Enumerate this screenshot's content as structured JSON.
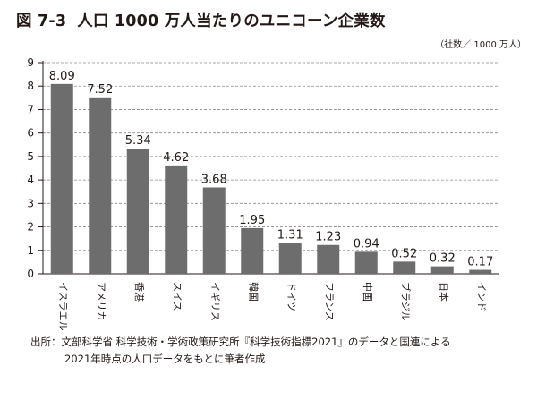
{
  "title": {
    "figure_no": "図 7-3",
    "text": "人口 1000 万人当たりのユニコーン企業数"
  },
  "source": {
    "line1": "出所：文部科学省 科学技術・学術政策研究所『科学技術指標2021』のデータと国連による",
    "line2": "2021年時点の人口データをもとに筆者作成"
  },
  "chart_data": {
    "type": "bar",
    "unit_label": "（社数／ 1000 万人）",
    "categories": [
      "イスラエル",
      "アメリカ",
      "香港",
      "スイス",
      "イギリス",
      "韓国",
      "ドイツ",
      "フランス",
      "中国",
      "ブラジル",
      "日本",
      "インド"
    ],
    "values": [
      8.09,
      7.52,
      5.34,
      4.62,
      3.68,
      1.95,
      1.31,
      1.23,
      0.94,
      0.52,
      0.32,
      0.17
    ],
    "value_labels": [
      "8.09",
      "7.52",
      "5.34",
      "4.62",
      "3.68",
      "1.95",
      "1.31",
      "1.23",
      "0.94",
      "0.52",
      "0.32",
      "0.17"
    ],
    "ylim": [
      0,
      9
    ],
    "yticks": [
      0,
      1,
      2,
      3,
      4,
      5,
      6,
      7,
      8,
      9
    ],
    "grid": "horizontal dashed",
    "bar_color": "#6d6d6d",
    "xlabel": "",
    "ylabel": ""
  }
}
